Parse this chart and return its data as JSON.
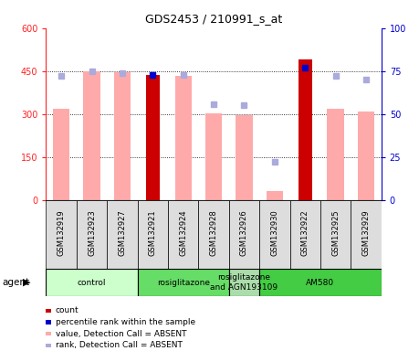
{
  "title": "GDS2453 / 210991_s_at",
  "samples": [
    "GSM132919",
    "GSM132923",
    "GSM132927",
    "GSM132921",
    "GSM132924",
    "GSM132928",
    "GSM132926",
    "GSM132930",
    "GSM132922",
    "GSM132925",
    "GSM132929"
  ],
  "count_values": [
    null,
    null,
    null,
    437,
    null,
    null,
    null,
    null,
    490,
    null,
    null
  ],
  "count_absent_values": [
    318,
    450,
    446,
    null,
    433,
    303,
    296,
    30,
    null,
    320,
    308
  ],
  "percentile_rank": [
    null,
    null,
    null,
    73,
    null,
    null,
    null,
    null,
    77,
    null,
    null
  ],
  "rank_absent_values": [
    72,
    75,
    74,
    null,
    73,
    56,
    55,
    22,
    null,
    72,
    70
  ],
  "agent_groups": [
    {
      "label": "control",
      "start": 0,
      "end": 3,
      "color": "#ccffcc"
    },
    {
      "label": "rosiglitazone",
      "start": 3,
      "end": 6,
      "color": "#66dd66"
    },
    {
      "label": "rosiglitazone\nand AGN193109",
      "start": 6,
      "end": 7,
      "color": "#aaddaa"
    },
    {
      "label": "AM580",
      "start": 7,
      "end": 11,
      "color": "#44cc44"
    }
  ],
  "ylim_left": [
    0,
    600
  ],
  "ylim_right": [
    0,
    100
  ],
  "yticks_left": [
    0,
    150,
    300,
    450,
    600
  ],
  "yticks_right": [
    0,
    25,
    50,
    75,
    100
  ],
  "left_color": "#ff2222",
  "right_color": "#0000cc",
  "count_color": "#cc0000",
  "count_absent_color": "#ffaaaa",
  "rank_color": "#0000cc",
  "rank_absent_color": "#aaaadd",
  "background_color": "#ffffff",
  "grid_color": "#000000",
  "legend_items": [
    {
      "label": "count",
      "color": "#cc0000"
    },
    {
      "label": "percentile rank within the sample",
      "color": "#0000cc"
    },
    {
      "label": "value, Detection Call = ABSENT",
      "color": "#ffaaaa"
    },
    {
      "label": "rank, Detection Call = ABSENT",
      "color": "#aaaadd"
    }
  ]
}
